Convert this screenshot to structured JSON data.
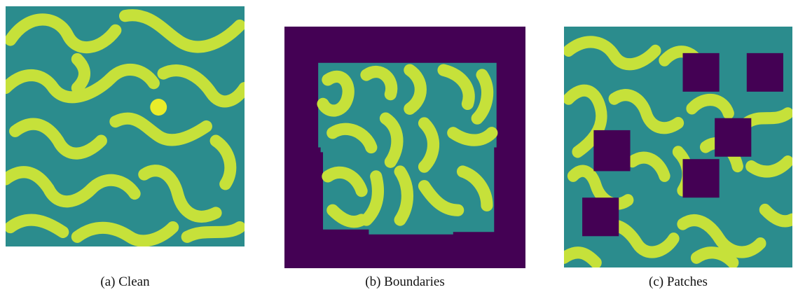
{
  "colors": {
    "background": "#2b8c8d",
    "stripe": "#c6e13a",
    "stripe_core": "#e9ec2a",
    "mask": "#440154"
  },
  "panels": [
    {
      "id": "a",
      "caption": "(a) Clean"
    },
    {
      "id": "b",
      "caption": "(b) Boundaries"
    },
    {
      "id": "c",
      "caption": "(c) Patches"
    }
  ]
}
